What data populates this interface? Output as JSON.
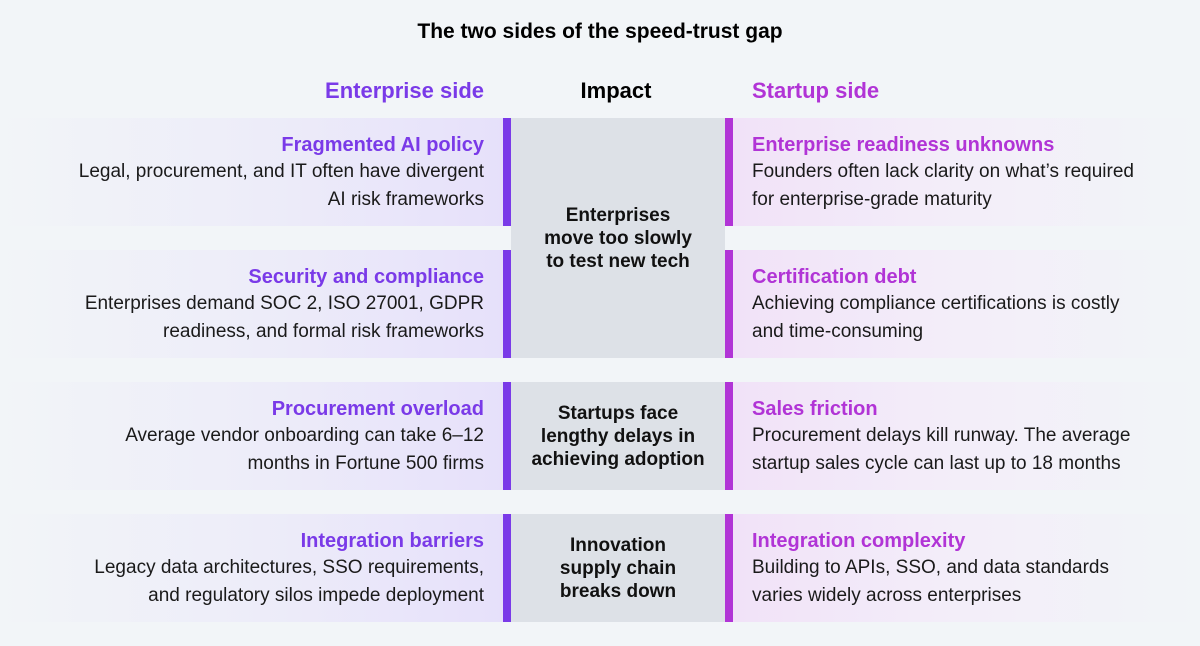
{
  "title": "The two sides of the speed-trust gap",
  "headers": {
    "enterprise": "Enterprise side",
    "impact": "Impact",
    "startup": "Startup side"
  },
  "rows": [
    {
      "enterprise": {
        "heading": "Fragmented AI policy",
        "lines": [
          "Legal, procurement, and IT often have divergent",
          "AI risk frameworks"
        ]
      },
      "startup": {
        "heading": "Enterprise readiness unknowns",
        "lines": [
          "Founders often lack clarity on what’s required",
          "for enterprise-grade maturity"
        ]
      }
    },
    {
      "enterprise": {
        "heading": "Security and compliance",
        "lines": [
          "Enterprises demand SOC 2, ISO 27001, GDPR",
          "readiness, and formal risk frameworks"
        ]
      },
      "startup": {
        "heading": "Certification debt",
        "lines": [
          "Achieving compliance certifications is costly",
          "and time-consuming"
        ]
      }
    },
    {
      "enterprise": {
        "heading": "Procurement overload",
        "lines": [
          "Average vendor onboarding can take 6–12",
          "months in Fortune 500 firms"
        ]
      },
      "startup": {
        "heading": "Sales friction",
        "lines": [
          "Procurement delays kill runway. The average",
          "startup sales cycle can last up to 18 months"
        ]
      }
    },
    {
      "enterprise": {
        "heading": "Integration barriers",
        "lines": [
          "Legacy data architectures, SSO requirements,",
          "and regulatory silos impede deployment"
        ]
      },
      "startup": {
        "heading": "Integration complexity",
        "lines": [
          "Building to APIs, SSO, and data standards",
          "varies widely across enterprises"
        ]
      }
    }
  ],
  "impacts": [
    {
      "lines": [
        "Enterprises",
        "move too slowly",
        "to test new tech"
      ]
    },
    {
      "lines": [
        "Startups face",
        "lengthy delays in",
        "achieving adoption"
      ]
    },
    {
      "lines": [
        "Innovation",
        "supply chain",
        "breaks down"
      ]
    }
  ],
  "colors": {
    "enterprise_accent": "#7a3ae8",
    "startup_accent": "#b134d6",
    "impact_fill": "#dde1e7"
  }
}
